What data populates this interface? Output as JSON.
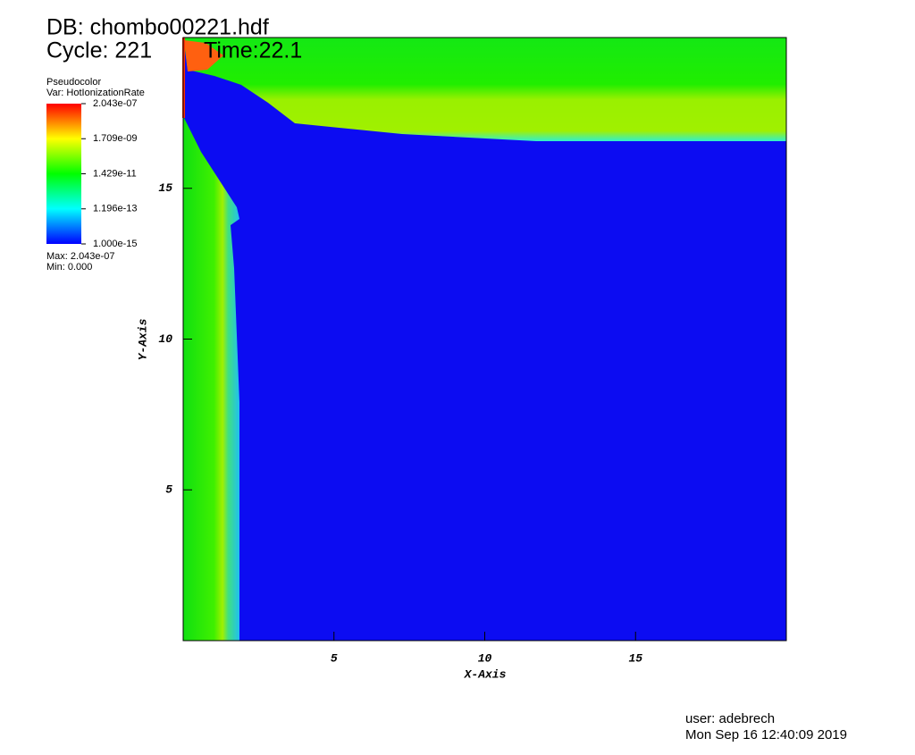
{
  "chart_data": {
    "type": "pseudocolor",
    "db_title": "DB: chombo00221.hdf",
    "cycle_label": "Cycle: 221",
    "time_label": "Time:22.1",
    "plot_kind": "Pseudocolor",
    "variable_label": "Var: HotIonizationRate",
    "max_label": "Max: 2.043e-07",
    "min_label": "Min: 0.000",
    "x_label": "X-Axis",
    "y_label": "Y-Axis",
    "xlim": [
      0,
      20
    ],
    "ylim": [
      0,
      20
    ],
    "xticks": [
      5,
      10,
      15
    ],
    "yticks": [
      5,
      10,
      15
    ],
    "colorbar": {
      "log": true,
      "lim": [
        1e-15,
        2.043e-07
      ],
      "ticks": [
        {
          "value": 2.043e-07,
          "label": "2.043e-07"
        },
        {
          "value": 1.709e-09,
          "label": "1.709e-09"
        },
        {
          "value": 1.429e-11,
          "label": "1.429e-11"
        },
        {
          "value": 1.196e-13,
          "label": "1.196e-13"
        },
        {
          "value": 1e-15,
          "label": "1.000e-15"
        }
      ]
    },
    "user_label": "user: adebrech",
    "date_label": "Mon Sep 16 12:40:09 2019"
  }
}
